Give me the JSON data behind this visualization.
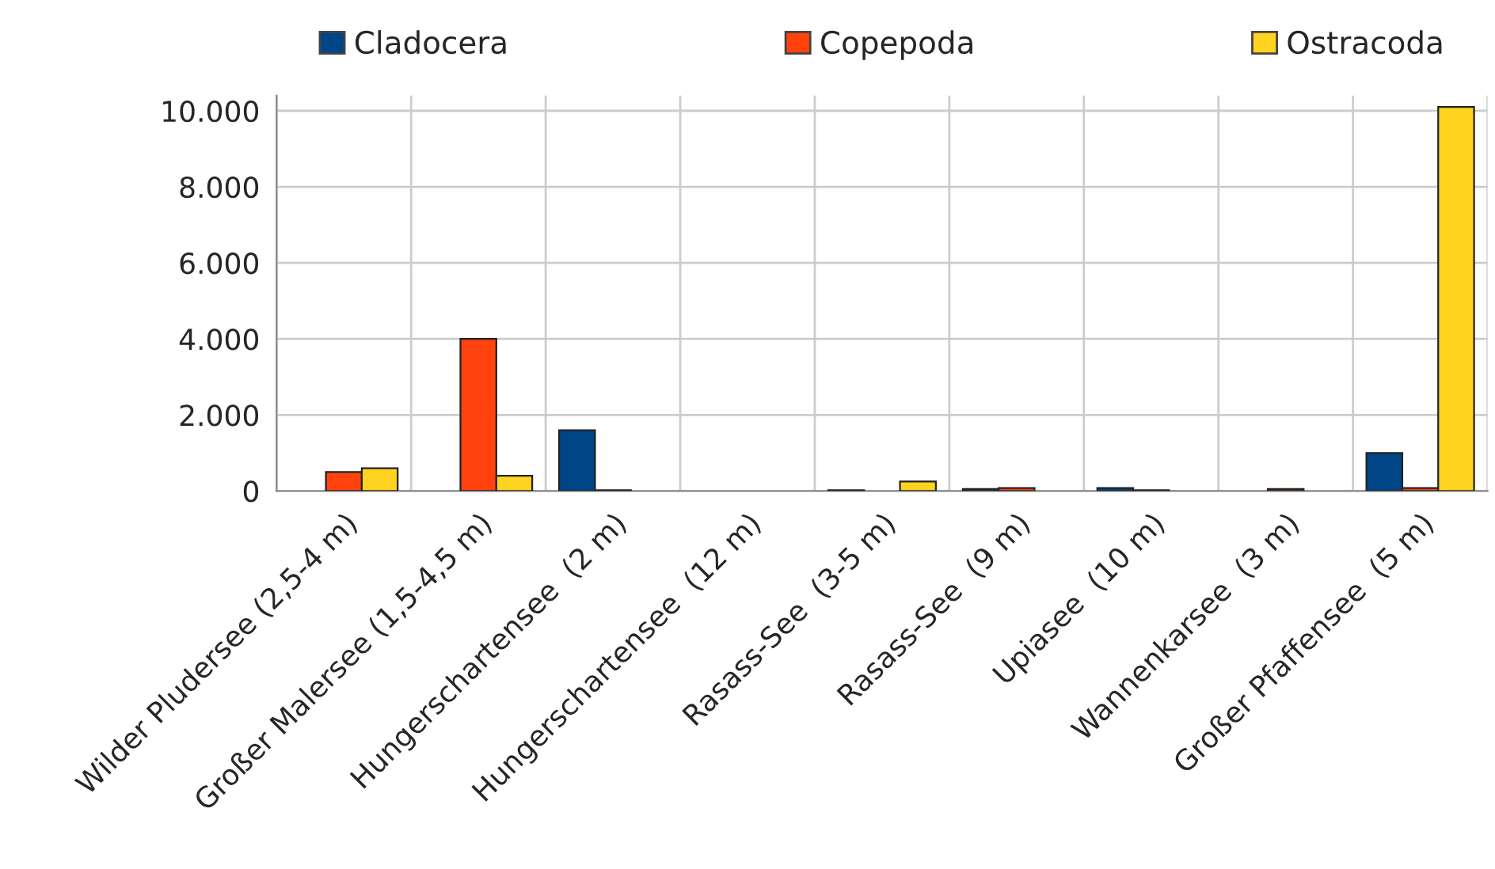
{
  "chart_data": {
    "type": "bar",
    "categories": [
      "Wilder Pludersee (2,5-4 m)",
      "Großer Malersee (1,5-4,5 m)",
      "Hungerschartensee  (2 m)",
      "Hungerschartensee  (12 m)",
      "Rasass-See  (3-5 m)",
      "Rasass-See  (9 m)",
      "Upiasee  (10 m)",
      "Wannenkarsee  (3 m)",
      "Großer Pfaffensee  (5 m)"
    ],
    "series": [
      {
        "name": "Cladocera",
        "color": "#004586",
        "values": [
          0,
          0,
          1600,
          0,
          20,
          50,
          80,
          0,
          1000
        ]
      },
      {
        "name": "Copepoda",
        "color": "#ff420e",
        "values": [
          500,
          4000,
          20,
          0,
          0,
          80,
          20,
          50,
          80
        ]
      },
      {
        "name": "Ostracoda",
        "color": "#ffd320",
        "values": [
          600,
          400,
          0,
          0,
          250,
          0,
          0,
          0,
          10100
        ]
      }
    ],
    "ylim": [
      0,
      10400
    ],
    "yticks": [
      {
        "value": 0,
        "label": "0"
      },
      {
        "value": 2000,
        "label": "2.000"
      },
      {
        "value": 4000,
        "label": "4.000"
      },
      {
        "value": 6000,
        "label": "6.000"
      },
      {
        "value": 8000,
        "label": "8.000"
      },
      {
        "value": 10000,
        "label": "10.000"
      }
    ],
    "grid": true,
    "legend": "top"
  }
}
